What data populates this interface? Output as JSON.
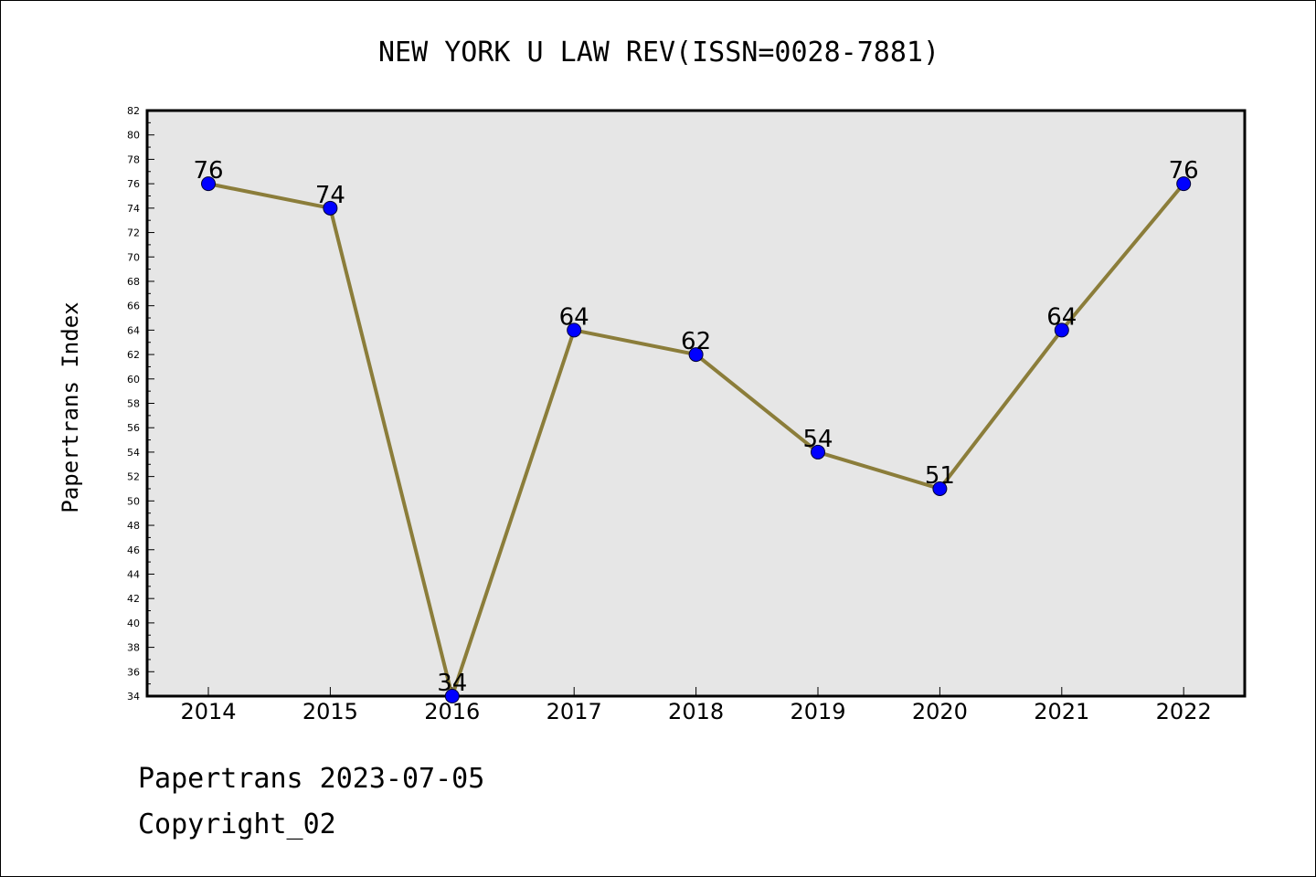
{
  "chart_data": {
    "type": "line",
    "title": "NEW YORK U LAW REV(ISSN=0028-7881)",
    "xlabel": "",
    "ylabel": "Papertrans Index",
    "categories": [
      "2014",
      "2015",
      "2016",
      "2017",
      "2018",
      "2019",
      "2020",
      "2021",
      "2022"
    ],
    "series": [
      {
        "values": [
          76,
          74,
          34,
          64,
          62,
          54,
          51,
          64,
          76
        ]
      }
    ],
    "ylim": [
      34,
      82
    ],
    "yticks": [
      34,
      36,
      38,
      40,
      42,
      44,
      46,
      48,
      50,
      52,
      54,
      56,
      58,
      60,
      62,
      64,
      66,
      68,
      70,
      72,
      74,
      76,
      78,
      80,
      82
    ],
    "grid": false,
    "legend": "none",
    "colors": {
      "line": "#8b7d3a",
      "marker": "#0000ff",
      "plot_background": "#e6e6e6"
    }
  },
  "footer": {
    "line1": "Papertrans 2023-07-05",
    "line2": "Copyright_02"
  }
}
